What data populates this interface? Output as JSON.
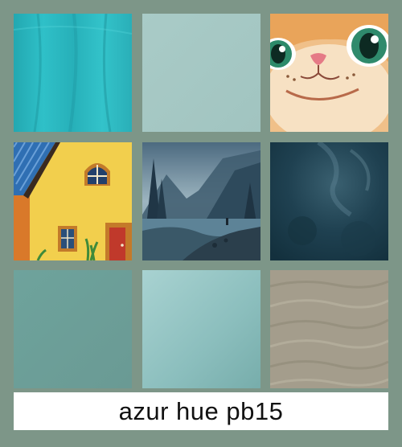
{
  "caption": "azur hue pb15",
  "colors": {
    "background": "#7d9688",
    "caption_bg": "#ffffff",
    "caption_text": "#111111"
  },
  "tiles": [
    {
      "name": "tile-turquoise-fabric",
      "kind": "fabric",
      "color": "#2bb3bc"
    },
    {
      "name": "tile-pale-aqua-swatch",
      "kind": "swatch",
      "color": "#a7c9c5"
    },
    {
      "name": "tile-cat-face",
      "kind": "illustration",
      "color": "#f3d4b0"
    },
    {
      "name": "tile-yellow-house",
      "kind": "illustration",
      "color": "#f5d34a"
    },
    {
      "name": "tile-misty-lake-landscape",
      "kind": "illustration",
      "color": "#5b7f92"
    },
    {
      "name": "tile-dark-teal-texture",
      "kind": "texture",
      "color": "#1d3d4c"
    },
    {
      "name": "tile-sage-teal-swatch",
      "kind": "swatch",
      "color": "#6ea09a"
    },
    {
      "name": "tile-light-teal-gradient",
      "kind": "swatch",
      "color": "#8bbdbd"
    },
    {
      "name": "tile-sand-waves",
      "kind": "texture",
      "color": "#a49d8c"
    }
  ]
}
